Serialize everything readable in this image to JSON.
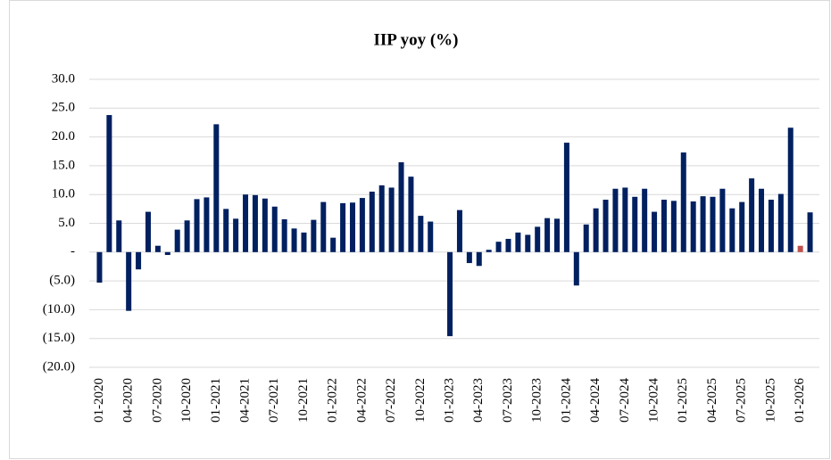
{
  "chart_data": {
    "type": "bar",
    "title": "IIP yoy (%)",
    "categories": [
      "01-2020",
      null,
      null,
      "04-2020",
      null,
      null,
      "07-2020",
      null,
      null,
      "10-2020",
      null,
      null,
      "01-2021",
      null,
      null,
      "04-2021",
      null,
      null,
      "07-2021",
      null,
      null,
      "10-2021",
      null,
      null,
      "01-2022",
      null,
      null,
      "04-2022",
      null,
      null,
      "07-2022",
      null,
      null,
      "10-2022",
      null,
      null,
      "01-2023",
      null,
      null,
      "04-2023",
      null,
      null,
      "07-2023",
      null,
      null,
      "10-2023",
      null,
      null,
      "01-2024",
      null,
      null,
      "04-2024",
      null,
      null,
      "07-2024",
      null,
      null,
      "10-2024",
      null,
      null,
      "01-2025",
      null,
      null,
      "04-2025",
      null,
      null,
      "07-2025",
      null,
      null,
      "10-2025",
      null,
      null,
      "01-2026",
      null
    ],
    "values": [
      -5.3,
      23.8,
      5.5,
      -10.2,
      -3.0,
      7.0,
      1.1,
      -0.5,
      3.9,
      5.5,
      9.2,
      9.5,
      22.2,
      7.5,
      5.8,
      10.0,
      9.9,
      9.3,
      7.9,
      5.7,
      4.1,
      3.4,
      5.6,
      8.7,
      2.5,
      8.5,
      8.6,
      9.4,
      10.5,
      11.6,
      11.2,
      15.6,
      13.1,
      6.3,
      5.3,
      0,
      -14.6,
      7.3,
      -1.9,
      -2.4,
      0.4,
      1.8,
      2.3,
      3.4,
      3.0,
      4.4,
      5.9,
      5.8,
      19.0,
      -5.8,
      4.8,
      7.6,
      9.1,
      11.0,
      11.2,
      9.6,
      11.0,
      7.0,
      9.1,
      8.9,
      17.3,
      8.8,
      9.7,
      9.6,
      11.0,
      7.6,
      8.7,
      12.8,
      11.0,
      9.1,
      10.1,
      21.6,
      1.1,
      6.9
    ],
    "color": "#002060",
    "colors": [
      "#002060",
      "#002060",
      "#002060",
      "#002060",
      "#002060",
      "#002060",
      "#002060",
      "#002060",
      "#002060",
      "#002060",
      "#002060",
      "#002060",
      "#002060",
      "#002060",
      "#002060",
      "#002060",
      "#002060",
      "#002060",
      "#002060",
      "#002060",
      "#002060",
      "#002060",
      "#002060",
      "#002060",
      "#002060",
      "#002060",
      "#002060",
      "#002060",
      "#002060",
      "#002060",
      "#002060",
      "#002060",
      "#002060",
      "#002060",
      "#002060",
      "#002060",
      "#002060",
      "#002060",
      "#002060",
      "#002060",
      "#002060",
      "#002060",
      "#002060",
      "#002060",
      "#002060",
      "#002060",
      "#002060",
      "#002060",
      "#002060",
      "#002060",
      "#002060",
      "#002060",
      "#002060",
      "#002060",
      "#002060",
      "#002060",
      "#002060",
      "#002060",
      "#002060",
      "#002060",
      "#002060",
      "#002060",
      "#002060",
      "#002060",
      "#002060",
      "#002060",
      "#002060",
      "#002060",
      "#002060",
      "#002060",
      "#002060",
      "#002060",
      "#c0504d",
      "#002060"
    ],
    "ylim": [
      -20,
      30
    ],
    "yticks": [
      {
        "value": -20,
        "label": "(20.0)"
      },
      {
        "value": -15,
        "label": "(15.0)"
      },
      {
        "value": -10,
        "label": "(10.0)"
      },
      {
        "value": -5,
        "label": "(5.0)"
      },
      {
        "value": 0,
        "label": "-"
      },
      {
        "value": 5,
        "label": "5.0"
      },
      {
        "value": 10,
        "label": "10.0"
      },
      {
        "value": 15,
        "label": "15.0"
      },
      {
        "value": 20,
        "label": "20.0"
      },
      {
        "value": 25,
        "label": "25.0"
      },
      {
        "value": 30,
        "label": "30.0"
      }
    ],
    "grid": true
  }
}
